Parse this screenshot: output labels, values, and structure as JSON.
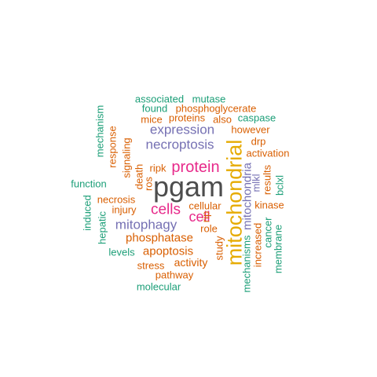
{
  "word_cloud": {
    "colors": {
      "dark_gray": "#4d4d4d",
      "green": "#1b9e77",
      "orange": "#d95f02",
      "purple": "#7570b3",
      "magenta": "#e7298a",
      "mustard": "#e6ab02"
    },
    "words": [
      {
        "text": "pgam",
        "color": "dark_gray",
        "rotated": false
      },
      {
        "text": "mitochondrial",
        "color": "mustard",
        "rotated": true
      },
      {
        "text": "protein",
        "color": "magenta",
        "rotated": false
      },
      {
        "text": "cells",
        "color": "magenta",
        "rotated": false
      },
      {
        "text": "cell",
        "color": "magenta",
        "rotated": false
      },
      {
        "text": "necroptosis",
        "color": "purple",
        "rotated": false
      },
      {
        "text": "expression",
        "color": "purple",
        "rotated": false
      },
      {
        "text": "mitophagy",
        "color": "purple",
        "rotated": false
      },
      {
        "text": "phosphatase",
        "color": "orange",
        "rotated": false
      },
      {
        "text": "apoptosis",
        "color": "orange",
        "rotated": false
      },
      {
        "text": "activity",
        "color": "orange",
        "rotated": false
      },
      {
        "text": "stress",
        "color": "orange",
        "rotated": false
      },
      {
        "text": "pathway",
        "color": "orange",
        "rotated": false
      },
      {
        "text": "molecular",
        "color": "green",
        "rotated": false
      },
      {
        "text": "associated",
        "color": "green",
        "rotated": false
      },
      {
        "text": "mutase",
        "color": "green",
        "rotated": false
      },
      {
        "text": "found",
        "color": "green",
        "rotated": false
      },
      {
        "text": "phosphoglycerate",
        "color": "orange",
        "rotated": false
      },
      {
        "text": "mice",
        "color": "orange",
        "rotated": false
      },
      {
        "text": "proteins",
        "color": "orange",
        "rotated": false
      },
      {
        "text": "also",
        "color": "orange",
        "rotated": false
      },
      {
        "text": "caspase",
        "color": "green",
        "rotated": false
      },
      {
        "text": "however",
        "color": "orange",
        "rotated": false
      },
      {
        "text": "drp",
        "color": "orange",
        "rotated": false
      },
      {
        "text": "activation",
        "color": "orange",
        "rotated": false
      },
      {
        "text": "ripk",
        "color": "orange",
        "rotated": false
      },
      {
        "text": "function",
        "color": "green",
        "rotated": false
      },
      {
        "text": "necrosis",
        "color": "orange",
        "rotated": false
      },
      {
        "text": "injury",
        "color": "orange",
        "rotated": false
      },
      {
        "text": "levels",
        "color": "green",
        "rotated": false
      },
      {
        "text": "cellular",
        "color": "orange",
        "rotated": false
      },
      {
        "text": "role",
        "color": "orange",
        "rotated": false
      },
      {
        "text": "kinase",
        "color": "orange",
        "rotated": false
      },
      {
        "text": "mechanism",
        "color": "green",
        "rotated": true
      },
      {
        "text": "response",
        "color": "orange",
        "rotated": true
      },
      {
        "text": "signaling",
        "color": "orange",
        "rotated": true
      },
      {
        "text": "death",
        "color": "orange",
        "rotated": true
      },
      {
        "text": "ros",
        "color": "orange",
        "rotated": true
      },
      {
        "text": "induced",
        "color": "green",
        "rotated": true
      },
      {
        "text": "hepatic",
        "color": "green",
        "rotated": true
      },
      {
        "text": "rip",
        "color": "orange",
        "rotated": true
      },
      {
        "text": "study",
        "color": "orange",
        "rotated": true
      },
      {
        "text": "mitochondria",
        "color": "purple",
        "rotated": true
      },
      {
        "text": "mlkl",
        "color": "purple",
        "rotated": true
      },
      {
        "text": "results",
        "color": "orange",
        "rotated": true
      },
      {
        "text": "bclxl",
        "color": "green",
        "rotated": true
      },
      {
        "text": "mechanisms",
        "color": "green",
        "rotated": true
      },
      {
        "text": "increased",
        "color": "orange",
        "rotated": true
      },
      {
        "text": "cancer",
        "color": "green",
        "rotated": true
      },
      {
        "text": "membrane",
        "color": "green",
        "rotated": true
      }
    ]
  }
}
